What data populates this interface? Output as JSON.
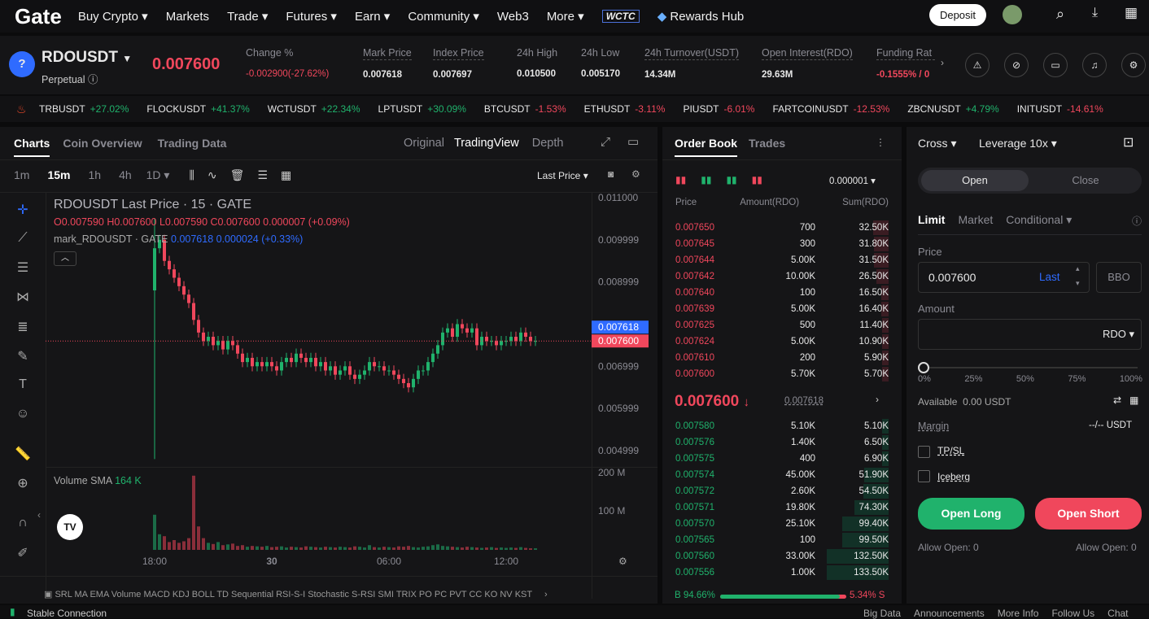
{
  "nav": {
    "logo": "Gate",
    "items": [
      "Buy Crypto ▾",
      "Markets",
      "Trade ▾",
      "Futures ▾",
      "Earn ▾",
      "Community ▾",
      "Web3",
      "More ▾"
    ],
    "wctc": "WCTC",
    "rewards": "Rewards Hub",
    "deposit": "Deposit"
  },
  "ticker": {
    "symbol": "RDOUSDT",
    "type": "Perpetual",
    "last": "0.007600",
    "stats": [
      {
        "label": "Change %",
        "value": "-0.002900(-27.62%)",
        "color": "red"
      },
      {
        "label": "Mark Price",
        "value": "0.007618"
      },
      {
        "label": "Index Price",
        "value": "0.007697"
      },
      {
        "label": "24h High",
        "value": "0.010500"
      },
      {
        "label": "24h Low",
        "value": "0.005170"
      },
      {
        "label": "24h Turnover(USDT)",
        "value": "14.34M"
      },
      {
        "label": "Open Interest(RDO)",
        "value": "29.63M"
      },
      {
        "label": "Funding Rat",
        "value": "-0.1555% / 0",
        "color": "red"
      }
    ]
  },
  "movers": [
    {
      "s": "TRBUSDT",
      "c": "+27.02%"
    },
    {
      "s": "FLOCKUSDT",
      "c": "+41.37%"
    },
    {
      "s": "WCTUSDT",
      "c": "+22.34%"
    },
    {
      "s": "LPTUSDT",
      "c": "+30.09%"
    },
    {
      "s": "BTCUSDT",
      "c": "-1.53%"
    },
    {
      "s": "ETHUSDT",
      "c": "-3.11%"
    },
    {
      "s": "PIUSDT",
      "c": "-6.01%"
    },
    {
      "s": "FARTCOINUSDT",
      "c": "-12.53%"
    },
    {
      "s": "ZBCNUSDT",
      "c": "+4.79%"
    },
    {
      "s": "INITUSDT",
      "c": "-14.61%"
    }
  ],
  "chart": {
    "tabs": [
      "Charts",
      "Coin Overview",
      "Trading Data"
    ],
    "views": [
      "Original",
      "TradingView",
      "Depth"
    ],
    "intervals": [
      "1m",
      "15m",
      "1h",
      "4h",
      "1D ▾"
    ],
    "price_type": "Last Price ▾",
    "title": "RDOUSDT Last Price · 15 · GATE",
    "ohlc": "O0.007590 H0.007600 L0.007590 C0.007600 0.000007 (+0.09%)",
    "mark_label": "mark_RDOUSDT · GATE",
    "mark_vals": "0.007618 0.000024 (+0.33%)",
    "volume_label": "Volume SMA",
    "volume_val": "164 K",
    "indicators": "SRL MA EMA Volume MACD KDJ BOLL TD Sequential RSI-S-I Stochastic S-RSI SMI TRIX PO PC PVT CC KO NV KST"
  },
  "chart_data": {
    "type": "candlestick",
    "yticks": [
      "0.011000",
      "0.009999",
      "0.008999",
      "0.006999",
      "0.005999",
      "0.004999"
    ],
    "xticks": [
      "18:00",
      "30",
      "06:00",
      "12:00"
    ],
    "volume_ticks": [
      "200 M",
      "100 M"
    ],
    "mark_price": "0.007618",
    "last_price": "0.007600",
    "first_open": 0.0088,
    "closes": [
      0.0098,
      0.01,
      0.0095,
      0.0093,
      0.0091,
      0.0089,
      0.0087,
      0.0085,
      0.0081,
      0.0078,
      0.0076,
      0.0077,
      0.0075,
      0.0076,
      0.0074,
      0.0076,
      0.0075,
      0.0073,
      0.0071,
      0.0072,
      0.007,
      0.0071,
      0.007,
      0.0071,
      0.007,
      0.0069,
      0.0071,
      0.0072,
      0.0071,
      0.0073,
      0.0072,
      0.0071,
      0.0072,
      0.007,
      0.0071,
      0.0069,
      0.007,
      0.0068,
      0.0069,
      0.007,
      0.0068,
      0.0067,
      0.0068,
      0.0069,
      0.0071,
      0.007,
      0.007,
      0.0069,
      0.0069,
      0.0068,
      0.0067,
      0.0066,
      0.0065,
      0.0067,
      0.0069,
      0.0069,
      0.0071,
      0.0073,
      0.0075,
      0.0078,
      0.0079,
      0.0077,
      0.008,
      0.0079,
      0.0078,
      0.0079,
      0.0075,
      0.0077,
      0.0076,
      0.0076,
      0.0075,
      0.0076,
      0.0076,
      0.0077,
      0.0076,
      0.0078,
      0.0077,
      0.0076,
      0.0076
    ],
    "volumes_m": [
      90,
      40,
      35,
      20,
      25,
      18,
      22,
      30,
      190,
      60,
      30,
      18,
      15,
      20,
      12,
      14,
      16,
      10,
      12,
      8,
      10,
      9,
      8,
      10,
      7,
      8,
      9,
      6,
      8,
      7,
      6,
      9,
      8,
      7,
      6,
      8,
      7,
      6,
      8,
      7,
      6,
      9,
      8,
      6,
      12,
      7,
      6,
      8,
      7,
      6,
      9,
      8,
      10,
      7,
      6,
      8,
      9,
      12,
      14,
      10,
      9,
      8,
      7,
      6,
      8,
      7,
      6,
      5,
      6,
      7,
      5,
      6,
      5,
      6,
      5,
      7,
      5,
      4,
      4
    ]
  },
  "orderbook": {
    "tabs": [
      "Order Book",
      "Trades"
    ],
    "precision": "0.000001 ▾",
    "headers": [
      "Price",
      "Amount(RDO)",
      "Sum(RDO)"
    ],
    "asks": [
      [
        "0.007650",
        "700",
        "32.50K"
      ],
      [
        "0.007645",
        "300",
        "31.80K"
      ],
      [
        "0.007644",
        "5.00K",
        "31.50K"
      ],
      [
        "0.007642",
        "10.00K",
        "26.50K"
      ],
      [
        "0.007640",
        "100",
        "16.50K"
      ],
      [
        "0.007639",
        "5.00K",
        "16.40K"
      ],
      [
        "0.007625",
        "500",
        "11.40K"
      ],
      [
        "0.007624",
        "5.00K",
        "10.90K"
      ],
      [
        "0.007610",
        "200",
        "5.90K"
      ],
      [
        "0.007600",
        "5.70K",
        "5.70K"
      ]
    ],
    "mid": "0.007600",
    "mid_arrow": "↓",
    "mid_mark": "0.007618",
    "bids": [
      [
        "0.007580",
        "5.10K",
        "5.10K"
      ],
      [
        "0.007576",
        "1.40K",
        "6.50K"
      ],
      [
        "0.007575",
        "400",
        "6.90K"
      ],
      [
        "0.007574",
        "45.00K",
        "51.90K"
      ],
      [
        "0.007572",
        "2.60K",
        "54.50K"
      ],
      [
        "0.007571",
        "19.80K",
        "74.30K"
      ],
      [
        "0.007570",
        "25.10K",
        "99.40K"
      ],
      [
        "0.007565",
        "100",
        "99.50K"
      ],
      [
        "0.007560",
        "33.00K",
        "132.50K"
      ],
      [
        "0.007556",
        "1.00K",
        "133.50K"
      ]
    ],
    "buy_pct": "B 94.66%",
    "sell_pct": "5.34% S",
    "buy_ratio": 94.66
  },
  "order": {
    "margin_mode": "Cross ▾",
    "leverage": "Leverage 10x ▾",
    "open": "Open",
    "close": "Close",
    "types": [
      "Limit",
      "Market",
      "Conditional ▾"
    ],
    "price_label": "Price",
    "price_value": "0.007600",
    "last": "Last",
    "bbo": "BBO",
    "amount_label": "Amount",
    "unit": "RDO ▾",
    "slider_marks": [
      "0%",
      "25%",
      "50%",
      "75%",
      "100%"
    ],
    "slider_value": 0,
    "available": "Available  0.00 USDT",
    "margin": "Margin",
    "margin_val": "--/-- USDT",
    "tpsl": "TP/SL",
    "iceberg": "Iceberg",
    "long": "Open Long",
    "short": "Open Short",
    "allow_long": "Allow Open: 0",
    "allow_short": "Allow Open: 0"
  },
  "footer": {
    "status": "Stable Connection",
    "links": [
      "Big Data",
      "Announcements",
      "More Info",
      "Follow Us",
      "Chat"
    ]
  },
  "colors": {
    "up": "#20b26c",
    "down": "#f0475c",
    "accent": "#2f6bff"
  }
}
